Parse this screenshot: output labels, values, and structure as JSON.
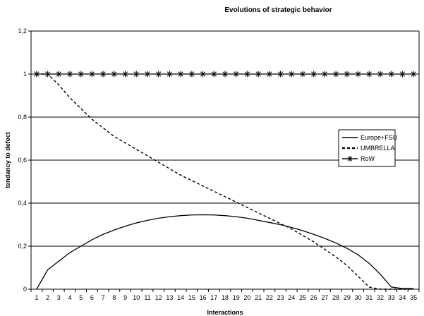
{
  "chart_data": {
    "type": "line",
    "title": "Evolutions of strategic behavior",
    "xlabel": "Interactions",
    "ylabel": "tendancy to defect",
    "x": [
      1,
      2,
      3,
      4,
      5,
      6,
      7,
      8,
      9,
      10,
      11,
      12,
      13,
      14,
      15,
      16,
      17,
      18,
      19,
      20,
      21,
      22,
      23,
      24,
      25,
      26,
      27,
      28,
      29,
      30,
      31,
      32,
      33,
      34,
      35
    ],
    "ylim": [
      0,
      1.2
    ],
    "yticks": [
      "0",
      "0,2",
      "0,4",
      "0,6",
      "0,8",
      "1",
      "1,2"
    ],
    "grid": true,
    "legend_position": "right",
    "series": [
      {
        "name": "Europe+FSU",
        "style": "solid",
        "color": "#000000",
        "values": [
          0,
          0.09,
          0.13,
          0.17,
          0.2,
          0.23,
          0.255,
          0.275,
          0.293,
          0.308,
          0.32,
          0.33,
          0.337,
          0.342,
          0.345,
          0.346,
          0.345,
          0.342,
          0.337,
          0.33,
          0.32,
          0.31,
          0.3,
          0.287,
          0.272,
          0.255,
          0.236,
          0.215,
          0.19,
          0.16,
          0.12,
          0.07,
          0.01,
          0.003,
          0.003
        ]
      },
      {
        "name": "UMBRELLA",
        "style": "dashed",
        "color": "#000000",
        "values": [
          1,
          1,
          0.95,
          0.89,
          0.84,
          0.79,
          0.75,
          0.71,
          0.68,
          0.65,
          0.62,
          0.59,
          0.56,
          0.53,
          0.505,
          0.48,
          0.455,
          0.43,
          0.405,
          0.38,
          0.355,
          0.33,
          0.305,
          0.28,
          0.25,
          0.22,
          0.185,
          0.15,
          0.11,
          0.06,
          0.01,
          0,
          0,
          0,
          0
        ]
      },
      {
        "name": "RoW",
        "style": "star-markers",
        "color": "#000000",
        "values": [
          1,
          1,
          1,
          1,
          1,
          1,
          1,
          1,
          1,
          1,
          1,
          1,
          1,
          1,
          1,
          1,
          1,
          1,
          1,
          1,
          1,
          1,
          1,
          1,
          1,
          1,
          1,
          1,
          1,
          1,
          1,
          1,
          1,
          1,
          1
        ]
      }
    ]
  }
}
